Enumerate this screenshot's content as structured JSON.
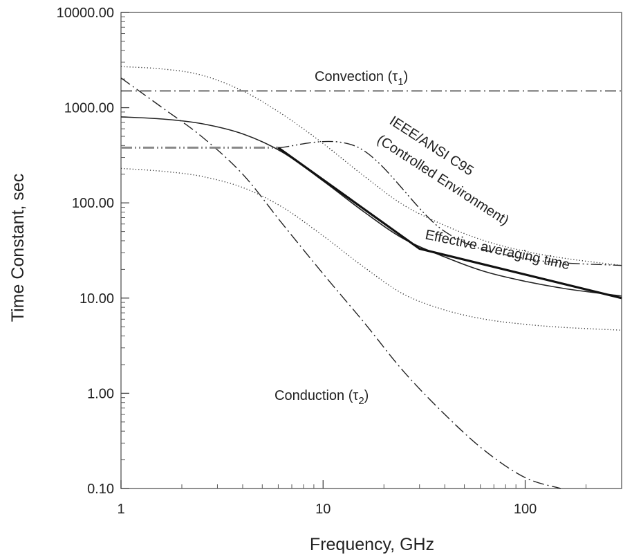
{
  "chart_data": {
    "type": "line",
    "title": "",
    "xlabel": "Frequency, GHz",
    "ylabel": "Time Constant, sec",
    "xscale": "log",
    "yscale": "log",
    "xlim": [
      1,
      300
    ],
    "ylim": [
      0.1,
      10000
    ],
    "grid": false,
    "x_tick_labels": [
      {
        "value": 1,
        "label": "1"
      },
      {
        "value": 10,
        "label": "10"
      },
      {
        "value": 100,
        "label": "100"
      }
    ],
    "y_tick_labels": [
      {
        "value": 10000,
        "label": "10000.00"
      },
      {
        "value": 1000,
        "label": "1000.00"
      },
      {
        "value": 100,
        "label": "100.00"
      },
      {
        "value": 10,
        "label": "10.00"
      },
      {
        "value": 1,
        "label": "1.00"
      },
      {
        "value": 0.1,
        "label": "0.10"
      }
    ],
    "series": [
      {
        "style": "dash-dot",
        "color": "#1a1a1a",
        "points": [
          [
            1,
            1500
          ],
          [
            300,
            1500
          ]
        ]
      },
      {
        "style": "dash-dot",
        "color": "#222222",
        "points": [
          [
            1,
            2050
          ],
          [
            1.6,
            1000
          ],
          [
            2.5,
            500
          ],
          [
            4,
            200
          ],
          [
            6.3,
            60
          ],
          [
            10,
            18
          ],
          [
            16,
            5.5
          ],
          [
            25,
            1.7
          ],
          [
            40,
            0.6
          ],
          [
            63,
            0.25
          ],
          [
            100,
            0.13
          ],
          [
            150,
            0.1
          ]
        ]
      },
      {
        "style": "dash-dot-dot",
        "color": "#888888",
        "width": 3,
        "points": [
          [
            1,
            380
          ],
          [
            6,
            380
          ]
        ]
      },
      {
        "style": "dash-dot-dot",
        "color": "#222222",
        "width": 1.4,
        "points": [
          [
            6,
            380
          ],
          [
            15,
            380
          ],
          [
            40,
            50
          ],
          [
            100,
            26
          ],
          [
            300,
            22
          ]
        ]
      },
      {
        "style": "solid",
        "color": "#222222",
        "width": 1.6,
        "points": [
          [
            1,
            800
          ],
          [
            1.6,
            760
          ],
          [
            2.5,
            680
          ],
          [
            4,
            530
          ],
          [
            6.3,
            340
          ],
          [
            10,
            170
          ],
          [
            16,
            80
          ],
          [
            25,
            42
          ],
          [
            40,
            27
          ],
          [
            63,
            19
          ],
          [
            100,
            15
          ],
          [
            160,
            12.5
          ],
          [
            300,
            10.5
          ]
        ]
      },
      {
        "style": "dotted",
        "color": "#333333",
        "points": [
          [
            1,
            2700
          ],
          [
            1.6,
            2550
          ],
          [
            2.5,
            2200
          ],
          [
            4,
            1500
          ],
          [
            6.3,
            850
          ],
          [
            10,
            420
          ],
          [
            16,
            190
          ],
          [
            25,
            95
          ],
          [
            40,
            58
          ],
          [
            63,
            40
          ],
          [
            100,
            31
          ],
          [
            160,
            26
          ],
          [
            300,
            22
          ]
        ]
      },
      {
        "style": "dotted",
        "color": "#333333",
        "points": [
          [
            1,
            230
          ],
          [
            1.6,
            215
          ],
          [
            2.5,
            190
          ],
          [
            4,
            145
          ],
          [
            6.3,
            90
          ],
          [
            10,
            45
          ],
          [
            16,
            21
          ],
          [
            25,
            11
          ],
          [
            40,
            7.5
          ],
          [
            63,
            6
          ],
          [
            100,
            5.3
          ],
          [
            160,
            4.9
          ],
          [
            300,
            4.6
          ]
        ]
      },
      {
        "style": "solid",
        "color": "#111111",
        "width": 3.2,
        "points": [
          [
            6,
            380
          ],
          [
            30,
            33
          ],
          [
            300,
            10
          ]
        ]
      }
    ],
    "annotations": [
      {
        "text": "Convection (τ",
        "sub": "1",
        "suffix": ")"
      },
      {
        "text": "Conduction (τ",
        "sub": "2",
        "suffix": ")"
      },
      {
        "text": "IEEE/ANSI C95"
      },
      {
        "text": "(Controlled Environment)"
      },
      {
        "text": "Effective averaging time"
      }
    ]
  }
}
